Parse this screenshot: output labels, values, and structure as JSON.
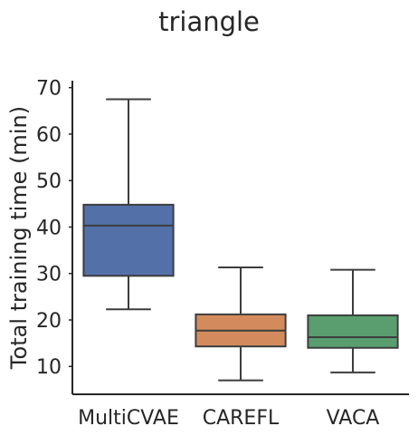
{
  "chart_data": {
    "type": "box",
    "title": "triangle",
    "xlabel": "",
    "ylabel": "Total training time (min)",
    "ylim": [
      4,
      71.5
    ],
    "yticks": [
      10,
      20,
      30,
      40,
      50,
      60,
      70
    ],
    "grid": false,
    "categories": [
      "MultiCVAE",
      "CAREFL",
      "VACA"
    ],
    "boxes": [
      {
        "label": "MultiCVAE",
        "whisker_low": 22.3,
        "q1": 29.5,
        "median": 40.3,
        "q3": 44.8,
        "whisker_high": 67.5,
        "color": "#5370a8"
      },
      {
        "label": "CAREFL",
        "whisker_low": 7.0,
        "q1": 14.3,
        "median": 17.7,
        "q3": 21.2,
        "whisker_high": 31.3,
        "color": "#d38b5d"
      },
      {
        "label": "VACA",
        "whisker_low": 8.7,
        "q1": 14.0,
        "median": 16.3,
        "q3": 21.0,
        "whisker_high": 30.8,
        "color": "#5a9e6f"
      }
    ]
  }
}
